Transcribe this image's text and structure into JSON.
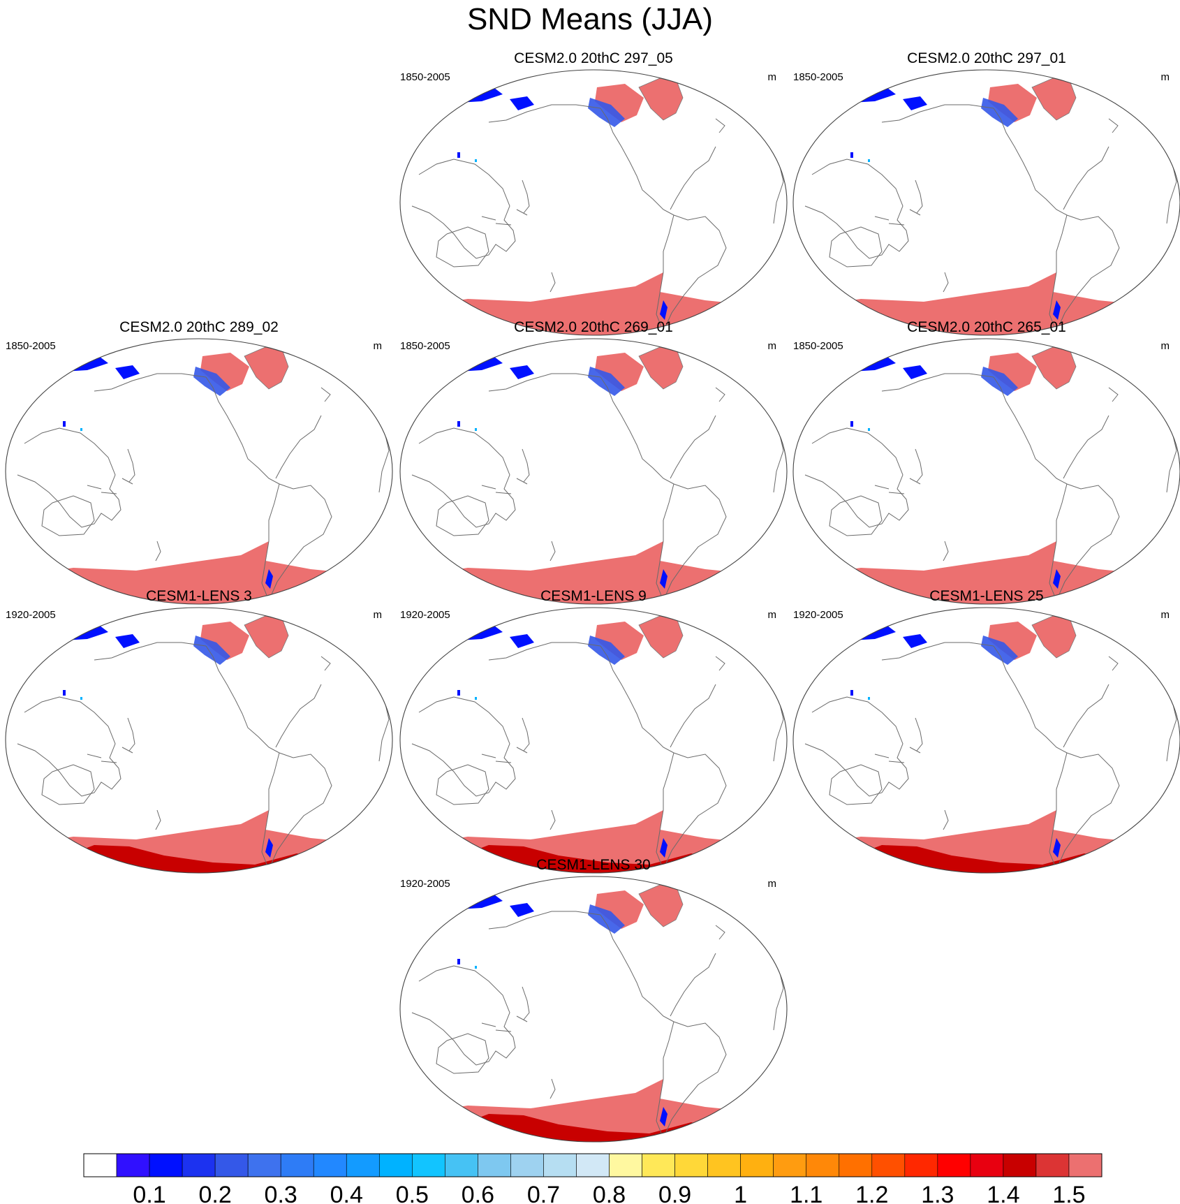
{
  "chart_data": {
    "type": "map-panel-grid",
    "title": "SND Means (JJA)",
    "variable": "SND",
    "season": "JJA",
    "panels": [
      {
        "title": "CESM2.0 20thC 297_05",
        "period": "1850-2005",
        "units": "m",
        "model": "CESM2.0"
      },
      {
        "title": "CESM2.0 20thC 297_01",
        "period": "1850-2005",
        "units": "m",
        "model": "CESM2.0"
      },
      {
        "title": "CESM2.0 20thC 289_02",
        "period": "1850-2005",
        "units": "m",
        "model": "CESM2.0"
      },
      {
        "title": "CESM2.0 20thC 269_01",
        "period": "1850-2005",
        "units": "m",
        "model": "CESM2.0"
      },
      {
        "title": "CESM2.0 20thC 265_01",
        "period": "1850-2005",
        "units": "m",
        "model": "CESM2.0"
      },
      {
        "title": "CESM1-LENS 3",
        "period": "1920-2005",
        "units": "m",
        "model": "CESM1-LENS"
      },
      {
        "title": "CESM1-LENS 9",
        "period": "1920-2005",
        "units": "m",
        "model": "CESM1-LENS"
      },
      {
        "title": "CESM1-LENS 25",
        "period": "1920-2005",
        "units": "m",
        "model": "CESM1-LENS"
      },
      {
        "title": "CESM1-LENS 30",
        "period": "1920-2005",
        "units": "m",
        "model": "CESM1-LENS"
      }
    ],
    "colorbar": {
      "ticks": [
        "0.1",
        "0.2",
        "0.3",
        "0.4",
        "0.5",
        "0.6",
        "0.7",
        "0.8",
        "0.9",
        "1",
        "1.1",
        "1.2",
        "1.3",
        "1.4",
        "1.5"
      ],
      "colors": [
        "#ffffff",
        "#3010ff",
        "#0010ff",
        "#1c32f0",
        "#3458e8",
        "#3e72ee",
        "#2e7cf6",
        "#2288ff",
        "#139bff",
        "#00b2ff",
        "#12c4ff",
        "#46c2f4",
        "#7ec8f0",
        "#9ed2f0",
        "#b6def2",
        "#d2e8f6",
        "#fff8a0",
        "#ffe858",
        "#ffd838",
        "#ffc420",
        "#ffb010",
        "#ff9c10",
        "#ff8808",
        "#ff7000",
        "#ff5000",
        "#ff2800",
        "#ff0000",
        "#e80010",
        "#c80000",
        "#dc3434",
        "#ec7070"
      ]
    }
  }
}
